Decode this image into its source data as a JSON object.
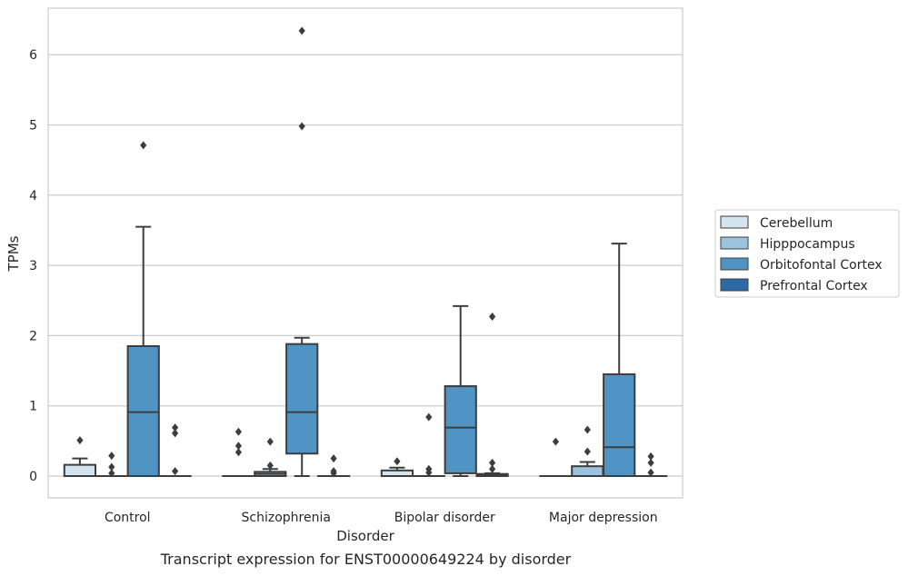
{
  "chart_data": {
    "type": "box",
    "title": "",
    "xlabel": "Disorder",
    "ylabel": "TPMs",
    "ylim": [
      -0.32,
      6.6
    ],
    "yticks": [
      0,
      1,
      2,
      3,
      4,
      5,
      6
    ],
    "grid": true,
    "legend_position": "right",
    "categories": [
      "Control",
      "Schizophrenia",
      "Bipolar disorder",
      "Major depression"
    ],
    "series": [
      {
        "name": "Cerebellum",
        "color": "#d3e3ef",
        "boxes": [
          {
            "q1": 0.0,
            "median": 0.0,
            "q3": 0.16,
            "whisker_low": 0.0,
            "whisker_high": 0.25,
            "outliers": [
              0.51
            ]
          },
          {
            "q1": 0.0,
            "median": 0.0,
            "q3": 0.0,
            "whisker_low": 0.0,
            "whisker_high": 0.0,
            "outliers": [
              0.63,
              0.43,
              0.34
            ]
          },
          {
            "q1": 0.0,
            "median": 0.0,
            "q3": 0.08,
            "whisker_low": 0.0,
            "whisker_high": 0.12,
            "outliers": [
              0.21
            ]
          },
          {
            "q1": 0.0,
            "median": 0.0,
            "q3": 0.0,
            "whisker_low": 0.0,
            "whisker_high": 0.0,
            "outliers": [
              0.49
            ]
          }
        ]
      },
      {
        "name": "Hipppocampus",
        "color": "#9cc3de",
        "boxes": [
          {
            "q1": 0.0,
            "median": 0.0,
            "q3": 0.0,
            "whisker_low": 0.0,
            "whisker_high": 0.0,
            "outliers": [
              0.29,
              0.13,
              0.04
            ]
          },
          {
            "q1": 0.0,
            "median": 0.03,
            "q3": 0.06,
            "whisker_low": 0.0,
            "whisker_high": 0.1,
            "outliers": [
              0.49,
              0.15
            ]
          },
          {
            "q1": 0.0,
            "median": 0.0,
            "q3": 0.0,
            "whisker_low": 0.0,
            "whisker_high": 0.0,
            "outliers": [
              0.84,
              0.1,
              0.05
            ]
          },
          {
            "q1": 0.0,
            "median": 0.0,
            "q3": 0.14,
            "whisker_low": 0.0,
            "whisker_high": 0.2,
            "outliers": [
              0.66,
              0.35
            ]
          }
        ]
      },
      {
        "name": "Orbitofontal Cortex",
        "color": "#5094c6",
        "boxes": [
          {
            "q1": 0.0,
            "median": 0.91,
            "q3": 1.85,
            "whisker_low": 0.0,
            "whisker_high": 3.55,
            "outliers": [
              4.71
            ]
          },
          {
            "q1": 0.32,
            "median": 0.91,
            "q3": 1.88,
            "whisker_low": 0.0,
            "whisker_high": 1.97,
            "outliers": [
              6.34,
              4.98
            ]
          },
          {
            "q1": 0.04,
            "median": 0.69,
            "q3": 1.28,
            "whisker_low": 0.0,
            "whisker_high": 2.42,
            "outliers": []
          },
          {
            "q1": 0.0,
            "median": 0.41,
            "q3": 1.45,
            "whisker_low": 0.0,
            "whisker_high": 3.31,
            "outliers": []
          }
        ]
      },
      {
        "name": "Prefrontal Cortex",
        "color": "#2b6aa4",
        "boxes": [
          {
            "q1": 0.0,
            "median": 0.0,
            "q3": 0.0,
            "whisker_low": 0.0,
            "whisker_high": 0.0,
            "outliers": [
              0.69,
              0.61,
              0.07
            ]
          },
          {
            "q1": 0.0,
            "median": 0.0,
            "q3": 0.0,
            "whisker_low": 0.0,
            "whisker_high": 0.0,
            "outliers": [
              0.25,
              0.07,
              0.04
            ]
          },
          {
            "q1": 0.0,
            "median": 0.02,
            "q3": 0.03,
            "whisker_low": 0.0,
            "whisker_high": 0.04,
            "outliers": [
              2.27,
              0.19,
              0.1
            ]
          },
          {
            "q1": 0.0,
            "median": 0.0,
            "q3": 0.0,
            "whisker_low": 0.0,
            "whisker_high": 0.0,
            "outliers": [
              0.28,
              0.19,
              0.05
            ]
          }
        ]
      }
    ]
  },
  "caption": "Transcript expression for ENST00000649224 by disorder"
}
